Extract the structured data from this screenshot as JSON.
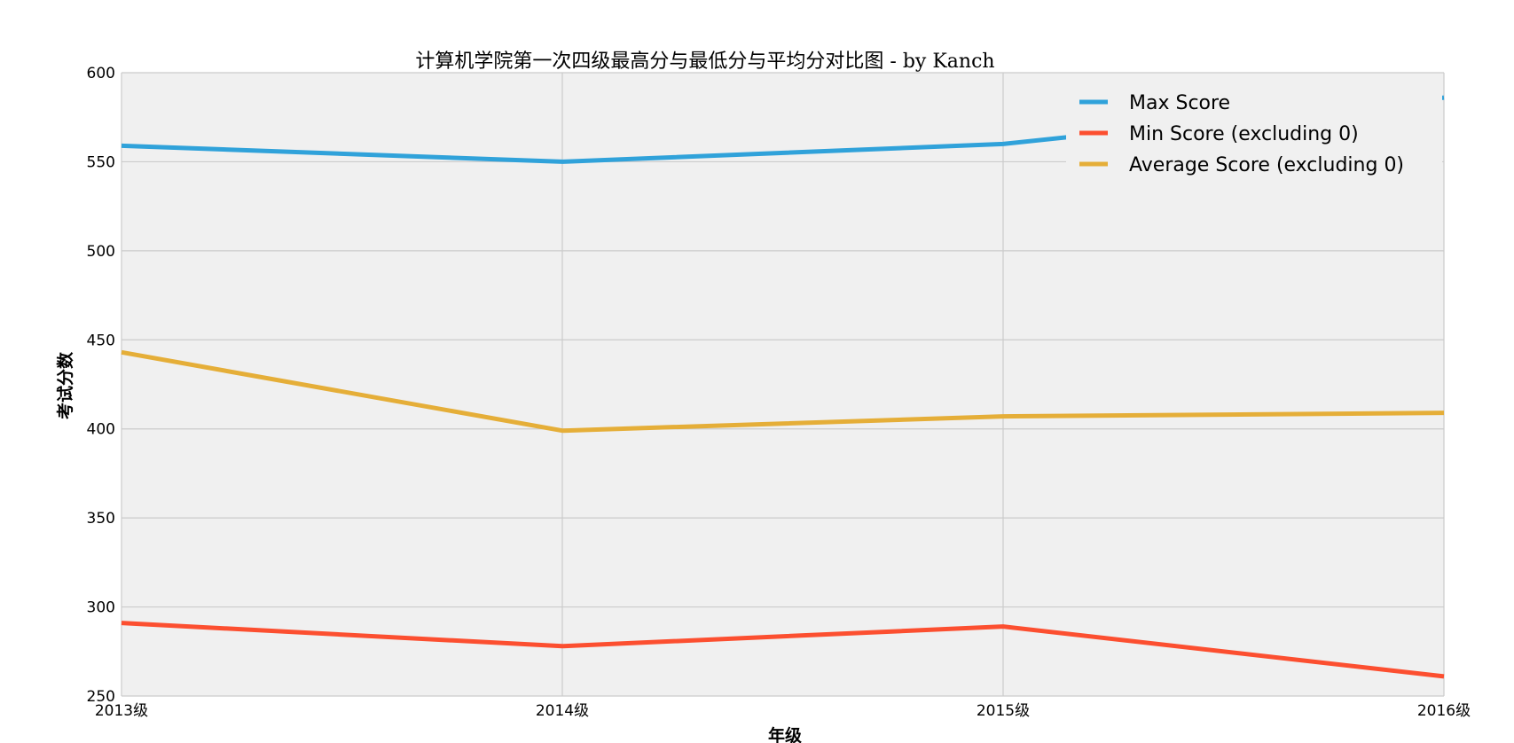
{
  "chart_data": {
    "type": "line",
    "title": "计算机学院第一次四级最高分与最低分与平均分对比图 - by Kanch",
    "xlabel": "年级",
    "ylabel": "考试分数",
    "categories": [
      "2013级",
      "2014级",
      "2015级",
      "2016级"
    ],
    "y_ticks": [
      "250",
      "300",
      "350",
      "400",
      "450",
      "500",
      "550",
      "600"
    ],
    "ylim": [
      250,
      600
    ],
    "grid": true,
    "legend_position": "top-right",
    "background": "#f0f0f0",
    "series": [
      {
        "name": "Max Score",
        "values": [
          559,
          550,
          560,
          586
        ],
        "color": "#30a2da"
      },
      {
        "name": "Min Score (excluding 0)",
        "values": [
          291,
          278,
          289,
          261
        ],
        "color": "#fc4f30"
      },
      {
        "name": "Average Score (excluding 0)",
        "values": [
          443,
          399,
          407,
          409
        ],
        "color": "#e5ae38"
      }
    ]
  }
}
